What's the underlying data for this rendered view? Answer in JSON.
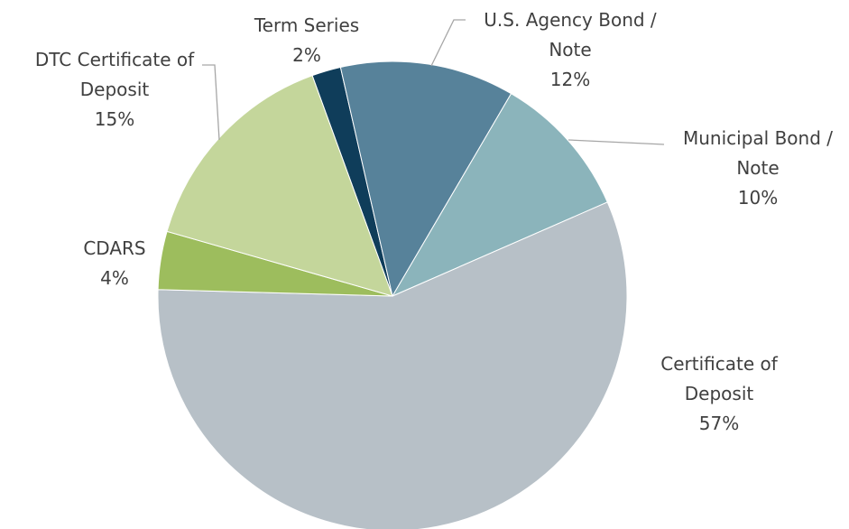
{
  "chart_data": {
    "type": "pie",
    "categories": [
      "Term Series",
      "U.S. Agency Bond / Note",
      "Municipal Bond / Note",
      "Certificate of Deposit",
      "CDARS",
      "DTC Certificate of Deposit"
    ],
    "values": [
      2,
      12,
      10,
      57,
      4,
      15
    ],
    "value_labels": [
      "2%",
      "12%",
      "10%",
      "57%",
      "4%",
      "15%"
    ],
    "colors": [
      "#0f3d5a",
      "#57829a",
      "#8bb4bb",
      "#b7c0c7",
      "#9dbd5d",
      "#c4d69b"
    ]
  }
}
